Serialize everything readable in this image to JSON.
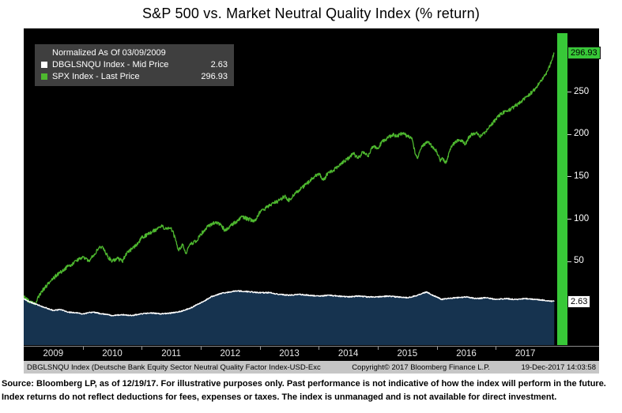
{
  "title": "S&P 500 vs. Market Neutral Quality Index (% return)",
  "legend": {
    "heading": "Normalized As Of 03/09/2009",
    "items": [
      {
        "label": "DBGLSNQU Index - Mid Price",
        "value": "2.63",
        "color": "#ffffff"
      },
      {
        "label": "SPX Index - Last Price",
        "value": "296.93",
        "color": "#4eb82f"
      }
    ]
  },
  "statusbar": {
    "left": "DBGLSNQU Index (Deutsche Bank Equity Sector Neutral Quality Factor Index-USD-Exc",
    "center": "Copyright© 2017 Bloomberg Finance L.P.",
    "right": "19-Dec-2017 14:03:58"
  },
  "footer": "Source: Bloomberg LP, as of 12/19/17. For illustrative purposes only. Past performance is not indicative of how the index will perform in the future. Index returns do not reflect deductions for fees, expenses or taxes. The index is unmanaged and is not available for direct investment.",
  "colors": {
    "chart_bg": "#000000",
    "spx_green": "#4eb82f",
    "bright_green": "#38c838",
    "dbg_white": "#ffffff",
    "dbg_fill": "#16334f",
    "legend_bg": "#3f3f3f",
    "statusbar_bg": "#c6c6c6"
  },
  "chart_data": {
    "type": "line",
    "title": "S&P 500 vs. Market Neutral Quality Index (% return)",
    "normalized_as_of": "03/09/2009",
    "xlabel": "",
    "ylabel": "% return",
    "xlim": [
      2009.0,
      2018.0
    ],
    "ylim": [
      -49,
      320
    ],
    "grid": false,
    "legend_position": "top-left",
    "yticks": [
      250,
      200,
      150,
      100,
      50
    ],
    "xticks": [
      "2009",
      "2010",
      "2011",
      "2012",
      "2013",
      "2014",
      "2015",
      "2016",
      "2017"
    ],
    "last_labels": {
      "spx": "296.93",
      "dbglsnqu": "2.63"
    },
    "series": [
      {
        "name": "SPX Index - Last Price",
        "color": "#4eb82f",
        "last": 296.93,
        "jitter": 2.2,
        "points": [
          [
            2009.0,
            8
          ],
          [
            2009.1,
            2
          ],
          [
            2009.19,
            0
          ],
          [
            2009.3,
            14
          ],
          [
            2009.4,
            22
          ],
          [
            2009.5,
            30
          ],
          [
            2009.6,
            36
          ],
          [
            2009.75,
            44
          ],
          [
            2009.85,
            48
          ],
          [
            2010.0,
            56
          ],
          [
            2010.1,
            50
          ],
          [
            2010.25,
            64
          ],
          [
            2010.33,
            68
          ],
          [
            2010.42,
            56
          ],
          [
            2010.5,
            50
          ],
          [
            2010.58,
            54
          ],
          [
            2010.67,
            50
          ],
          [
            2010.75,
            60
          ],
          [
            2010.92,
            70
          ],
          [
            2011.0,
            78
          ],
          [
            2011.1,
            82
          ],
          [
            2011.25,
            88
          ],
          [
            2011.33,
            92
          ],
          [
            2011.42,
            88
          ],
          [
            2011.5,
            90
          ],
          [
            2011.58,
            74
          ],
          [
            2011.62,
            64
          ],
          [
            2011.7,
            70
          ],
          [
            2011.75,
            60
          ],
          [
            2011.83,
            70
          ],
          [
            2011.92,
            74
          ],
          [
            2012.0,
            82
          ],
          [
            2012.1,
            90
          ],
          [
            2012.25,
            97
          ],
          [
            2012.33,
            94
          ],
          [
            2012.42,
            86
          ],
          [
            2012.5,
            92
          ],
          [
            2012.6,
            97
          ],
          [
            2012.7,
            103
          ],
          [
            2012.8,
            100
          ],
          [
            2012.92,
            98
          ],
          [
            2013.0,
            108
          ],
          [
            2013.1,
            113
          ],
          [
            2013.2,
            118
          ],
          [
            2013.33,
            122
          ],
          [
            2013.42,
            127
          ],
          [
            2013.5,
            122
          ],
          [
            2013.6,
            130
          ],
          [
            2013.7,
            136
          ],
          [
            2013.8,
            142
          ],
          [
            2013.92,
            150
          ],
          [
            2014.0,
            154
          ],
          [
            2014.08,
            146
          ],
          [
            2014.17,
            156
          ],
          [
            2014.25,
            158
          ],
          [
            2014.33,
            162
          ],
          [
            2014.42,
            168
          ],
          [
            2014.5,
            172
          ],
          [
            2014.58,
            178
          ],
          [
            2014.67,
            172
          ],
          [
            2014.75,
            180
          ],
          [
            2014.83,
            174
          ],
          [
            2014.92,
            186
          ],
          [
            2015.0,
            184
          ],
          [
            2015.08,
            192
          ],
          [
            2015.17,
            196
          ],
          [
            2015.25,
            200
          ],
          [
            2015.33,
            198
          ],
          [
            2015.42,
            202
          ],
          [
            2015.5,
            198
          ],
          [
            2015.58,
            196
          ],
          [
            2015.63,
            178
          ],
          [
            2015.67,
            172
          ],
          [
            2015.75,
            186
          ],
          [
            2015.83,
            192
          ],
          [
            2015.92,
            186
          ],
          [
            2016.0,
            180
          ],
          [
            2016.06,
            168
          ],
          [
            2016.1,
            172
          ],
          [
            2016.15,
            166
          ],
          [
            2016.25,
            186
          ],
          [
            2016.33,
            192
          ],
          [
            2016.42,
            194
          ],
          [
            2016.48,
            188
          ],
          [
            2016.52,
            194
          ],
          [
            2016.58,
            200
          ],
          [
            2016.67,
            202
          ],
          [
            2016.75,
            198
          ],
          [
            2016.83,
            204
          ],
          [
            2016.92,
            212
          ],
          [
            2017.0,
            218
          ],
          [
            2017.08,
            224
          ],
          [
            2017.17,
            228
          ],
          [
            2017.25,
            230
          ],
          [
            2017.33,
            234
          ],
          [
            2017.42,
            238
          ],
          [
            2017.5,
            244
          ],
          [
            2017.58,
            248
          ],
          [
            2017.67,
            254
          ],
          [
            2017.75,
            262
          ],
          [
            2017.83,
            270
          ],
          [
            2017.88,
            276
          ],
          [
            2017.92,
            282
          ],
          [
            2017.96,
            290
          ],
          [
            2017.99,
            296.93
          ]
        ]
      },
      {
        "name": "DBGLSNQU Index - Mid Price",
        "color": "#ffffff",
        "fill": "#16334f",
        "last": 2.63,
        "jitter": 0.6,
        "points": [
          [
            2009.0,
            6
          ],
          [
            2009.1,
            2
          ],
          [
            2009.19,
            0
          ],
          [
            2009.3,
            -3
          ],
          [
            2009.42,
            -6
          ],
          [
            2009.5,
            -8
          ],
          [
            2009.63,
            -7
          ],
          [
            2009.75,
            -10
          ],
          [
            2009.92,
            -11
          ],
          [
            2010.0,
            -12
          ],
          [
            2010.17,
            -10
          ],
          [
            2010.33,
            -12
          ],
          [
            2010.5,
            -14
          ],
          [
            2010.67,
            -13
          ],
          [
            2010.83,
            -14
          ],
          [
            2011.0,
            -12
          ],
          [
            2011.17,
            -11
          ],
          [
            2011.33,
            -12
          ],
          [
            2011.5,
            -11
          ],
          [
            2011.67,
            -9
          ],
          [
            2011.83,
            -5
          ],
          [
            2012.0,
            1
          ],
          [
            2012.08,
            4
          ],
          [
            2012.17,
            8
          ],
          [
            2012.25,
            10
          ],
          [
            2012.33,
            12
          ],
          [
            2012.42,
            13
          ],
          [
            2012.5,
            14
          ],
          [
            2012.58,
            15
          ],
          [
            2012.67,
            15
          ],
          [
            2012.83,
            14
          ],
          [
            2013.0,
            13
          ],
          [
            2013.17,
            13
          ],
          [
            2013.33,
            11
          ],
          [
            2013.5,
            10
          ],
          [
            2013.67,
            11
          ],
          [
            2013.83,
            10
          ],
          [
            2014.0,
            9
          ],
          [
            2014.17,
            10
          ],
          [
            2014.33,
            9
          ],
          [
            2014.5,
            8
          ],
          [
            2014.67,
            9
          ],
          [
            2014.83,
            8
          ],
          [
            2015.0,
            8
          ],
          [
            2015.17,
            9
          ],
          [
            2015.33,
            8
          ],
          [
            2015.5,
            7
          ],
          [
            2015.63,
            9
          ],
          [
            2015.75,
            12
          ],
          [
            2015.83,
            14
          ],
          [
            2015.92,
            10
          ],
          [
            2016.0,
            8
          ],
          [
            2016.08,
            5
          ],
          [
            2016.17,
            6
          ],
          [
            2016.33,
            7
          ],
          [
            2016.5,
            8
          ],
          [
            2016.67,
            6
          ],
          [
            2016.83,
            7
          ],
          [
            2017.0,
            5
          ],
          [
            2017.17,
            6
          ],
          [
            2017.33,
            5
          ],
          [
            2017.5,
            6
          ],
          [
            2017.67,
            5
          ],
          [
            2017.83,
            4
          ],
          [
            2017.99,
            2.63
          ]
        ]
      }
    ]
  }
}
